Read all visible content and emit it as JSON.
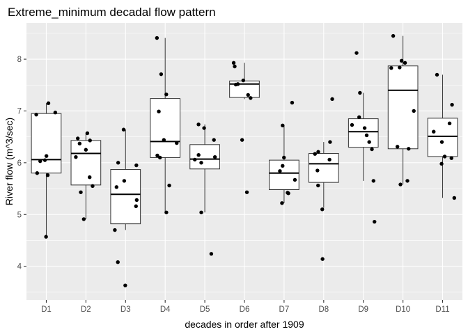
{
  "chart_data": {
    "type": "boxplot",
    "title": "Extreme_minimum decadal flow pattern",
    "xlabel": "decades in order after 1909",
    "ylabel": "River flow (m^3/sec)",
    "ylim": [
      3.35,
      8.7
    ],
    "y_ticks": [
      4,
      5,
      6,
      7,
      8
    ],
    "grid": true,
    "legend": "none",
    "colors": {
      "panel_background": "#ebebeb",
      "grid": "#ffffff",
      "box_fill": "#ffffff",
      "box_stroke": "#333333",
      "point": "#000000"
    },
    "categories": [
      "D1",
      "D2",
      "D3",
      "D4",
      "D5",
      "D6",
      "D7",
      "D8",
      "D9",
      "D10",
      "D11"
    ],
    "boxes": [
      {
        "category": "D1",
        "whisker_low": 4.57,
        "q1": 5.8,
        "median": 6.06,
        "q3": 6.95,
        "whisker_high": 7.15
      },
      {
        "category": "D2",
        "whisker_low": 4.91,
        "q1": 5.57,
        "median": 6.18,
        "q3": 6.43,
        "whisker_high": 6.57
      },
      {
        "category": "D3",
        "whisker_low": 4.7,
        "q1": 4.82,
        "median": 5.39,
        "q3": 5.87,
        "whisker_high": 6.64
      },
      {
        "category": "D4",
        "whisker_low": 5.04,
        "q1": 6.1,
        "median": 6.41,
        "q3": 7.24,
        "whisker_high": 8.41
      },
      {
        "category": "D5",
        "whisker_low": 5.04,
        "q1": 5.88,
        "median": 6.07,
        "q3": 6.35,
        "whisker_high": 6.74
      },
      {
        "category": "D6",
        "whisker_low": 7.23,
        "q1": 7.26,
        "median": 7.52,
        "q3": 7.58,
        "whisker_high": 7.93
      },
      {
        "category": "D7",
        "whisker_low": 5.22,
        "q1": 5.48,
        "median": 5.8,
        "q3": 6.05,
        "whisker_high": 6.72
      },
      {
        "category": "D8",
        "whisker_low": 5.13,
        "q1": 5.62,
        "median": 5.98,
        "q3": 6.18,
        "whisker_high": 6.4
      },
      {
        "category": "D9",
        "whisker_low": 5.65,
        "q1": 6.3,
        "median": 6.6,
        "q3": 6.85,
        "whisker_high": 7.35
      },
      {
        "category": "D10",
        "whisker_low": 5.58,
        "q1": 6.27,
        "median": 7.4,
        "q3": 7.87,
        "whisker_high": 8.45
      },
      {
        "category": "D11",
        "whisker_low": 5.32,
        "q1": 6.12,
        "median": 6.51,
        "q3": 6.86,
        "whisker_high": 7.7
      }
    ],
    "points": [
      {
        "category": "D1",
        "values": [
          4.57,
          5.76,
          5.8,
          6.03,
          6.05,
          6.13,
          6.93,
          6.97,
          7.15
        ]
      },
      {
        "category": "D2",
        "values": [
          4.91,
          5.43,
          5.55,
          5.72,
          6.11,
          6.25,
          6.37,
          6.43,
          6.47,
          6.57
        ]
      },
      {
        "category": "D3",
        "values": [
          3.63,
          4.08,
          4.7,
          5.16,
          5.28,
          5.53,
          5.65,
          5.95,
          6.0,
          6.64
        ]
      },
      {
        "category": "D4",
        "values": [
          5.04,
          5.56,
          6.1,
          6.14,
          6.38,
          6.44,
          6.99,
          7.32,
          7.71,
          8.41
        ]
      },
      {
        "category": "D5",
        "values": [
          4.24,
          5.04,
          6.0,
          6.06,
          6.11,
          6.15,
          6.44,
          6.67,
          6.74
        ]
      },
      {
        "category": "D6",
        "values": [
          5.43,
          6.44,
          7.25,
          7.31,
          7.51,
          7.52,
          7.59,
          7.86,
          7.93
        ]
      },
      {
        "category": "D7",
        "values": [
          5.22,
          5.41,
          5.42,
          5.67,
          5.84,
          5.94,
          6.1,
          6.72,
          7.16
        ]
      },
      {
        "category": "D8",
        "values": [
          4.14,
          5.1,
          5.56,
          5.85,
          6.06,
          6.17,
          6.21,
          6.4,
          7.23
        ]
      },
      {
        "category": "D9",
        "values": [
          4.86,
          5.65,
          6.26,
          6.4,
          6.53,
          6.67,
          6.73,
          6.88,
          7.35,
          8.12
        ]
      },
      {
        "category": "D10",
        "values": [
          5.58,
          5.65,
          6.27,
          6.31,
          7.0,
          7.83,
          7.84,
          7.93,
          7.97,
          8.45
        ]
      },
      {
        "category": "D11",
        "values": [
          5.32,
          5.98,
          6.09,
          6.12,
          6.4,
          6.6,
          6.76,
          7.12,
          7.7
        ]
      }
    ]
  }
}
